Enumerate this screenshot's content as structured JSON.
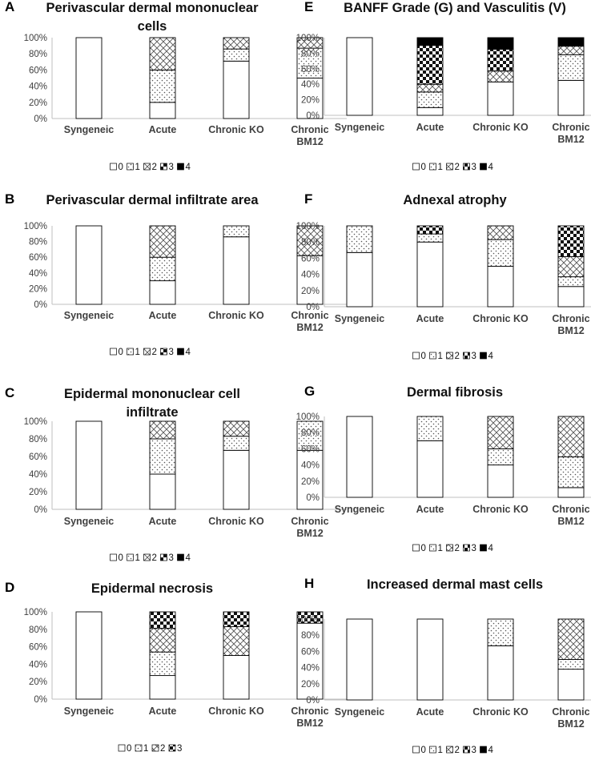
{
  "colors": {
    "bar_stroke": "#000000",
    "axis": "#bfbfbf",
    "text": "#404040",
    "background": "#ffffff"
  },
  "chart_data": [
    {
      "panel": "A",
      "type": "bar",
      "stacked": true,
      "percent": true,
      "title_lines": [
        "Perivascular dermal mononuclear",
        "cells"
      ],
      "categories": [
        "Syngeneic",
        "Acute",
        "Chronic KO",
        "Chronic BM12"
      ],
      "category_lines": [
        [
          "Syngeneic"
        ],
        [
          "Acute"
        ],
        [
          "Chronic KO"
        ],
        [
          "Chronic",
          "BM12"
        ]
      ],
      "yticks": [
        "0%",
        "20%",
        "40%",
        "60%",
        "80%",
        "100%"
      ],
      "ylim": [
        0,
        100
      ],
      "series": [
        {
          "name": "0",
          "values": [
            100,
            20,
            71,
            50
          ]
        },
        {
          "name": "1",
          "values": [
            0,
            40,
            15,
            37
          ]
        },
        {
          "name": "2",
          "values": [
            0,
            40,
            14,
            13
          ]
        },
        {
          "name": "3",
          "values": [
            0,
            0,
            0,
            0
          ]
        },
        {
          "name": "4",
          "values": [
            0,
            0,
            0,
            0
          ]
        }
      ],
      "legend": [
        "0",
        "1",
        "2",
        "3",
        "4"
      ]
    },
    {
      "panel": "B",
      "type": "bar",
      "stacked": true,
      "percent": true,
      "title_lines": [
        "Perivascular dermal infiltrate area"
      ],
      "categories": [
        "Syngeneic",
        "Acute",
        "Chronic KO",
        "Chronic BM12"
      ],
      "category_lines": [
        [
          "Syngeneic"
        ],
        [
          "Acute"
        ],
        [
          "Chronic KO"
        ],
        [
          "Chronic",
          "BM12"
        ]
      ],
      "yticks": [
        "0%",
        "20%",
        "40%",
        "60%",
        "80%",
        "100%"
      ],
      "ylim": [
        0,
        100
      ],
      "series": [
        {
          "name": "0",
          "values": [
            100,
            30,
            86,
            62
          ]
        },
        {
          "name": "1",
          "values": [
            0,
            30,
            14,
            0
          ]
        },
        {
          "name": "2",
          "values": [
            0,
            40,
            0,
            38
          ]
        },
        {
          "name": "3",
          "values": [
            0,
            0,
            0,
            0
          ]
        },
        {
          "name": "4",
          "values": [
            0,
            0,
            0,
            0
          ]
        }
      ],
      "legend": [
        "0",
        "1",
        "2",
        "3",
        "4"
      ]
    },
    {
      "panel": "C",
      "type": "bar",
      "stacked": true,
      "percent": true,
      "title_lines": [
        "Epidermal mononuclear cell",
        "infiltrate"
      ],
      "categories": [
        "Syngeneic",
        "Acute",
        "Chronic KO",
        "Chronic BM12"
      ],
      "category_lines": [
        [
          "Syngeneic"
        ],
        [
          "Acute"
        ],
        [
          "Chronic KO"
        ],
        [
          "Chronic",
          "BM12"
        ]
      ],
      "yticks": [
        "0%",
        "20%",
        "40%",
        "60%",
        "80%",
        "100%"
      ],
      "ylim": [
        0,
        100
      ],
      "series": [
        {
          "name": "0",
          "values": [
            100,
            40,
            67,
            67
          ]
        },
        {
          "name": "1",
          "values": [
            0,
            40,
            16,
            33
          ]
        },
        {
          "name": "2",
          "values": [
            0,
            20,
            17,
            0
          ]
        },
        {
          "name": "3",
          "values": [
            0,
            0,
            0,
            0
          ]
        },
        {
          "name": "4",
          "values": [
            0,
            0,
            0,
            0
          ]
        }
      ],
      "legend": [
        "0",
        "1",
        "2",
        "3",
        "4"
      ]
    },
    {
      "panel": "D",
      "type": "bar",
      "stacked": true,
      "percent": true,
      "title_lines": [
        "Epidermal necrosis"
      ],
      "categories": [
        "Syngeneic",
        "Acute",
        "Chronic KO",
        "Chronic BM12"
      ],
      "category_lines": [
        [
          "Syngeneic"
        ],
        [
          "Acute"
        ],
        [
          "Chronic KO"
        ],
        [
          "Chronic",
          "BM12"
        ]
      ],
      "yticks": [
        "0%",
        "20%",
        "40%",
        "60%",
        "80%",
        "100%"
      ],
      "ylim": [
        0,
        100
      ],
      "series": [
        {
          "name": "0",
          "values": [
            100,
            27,
            50,
            87
          ]
        },
        {
          "name": "1",
          "values": [
            0,
            27,
            0,
            0
          ]
        },
        {
          "name": "2",
          "values": [
            0,
            27,
            33,
            0
          ]
        },
        {
          "name": "3",
          "values": [
            0,
            19,
            17,
            13
          ]
        }
      ],
      "legend": [
        "0",
        "1",
        "2",
        "3"
      ]
    },
    {
      "panel": "E",
      "type": "bar",
      "stacked": true,
      "percent": true,
      "title_lines": [
        "BANFF Grade (G) and Vasculitis (V)"
      ],
      "categories": [
        "Syngeneic",
        "Acute",
        "Chronic KO",
        "Chronic BM12"
      ],
      "category_lines": [
        [
          "Syngeneic"
        ],
        [
          "Acute"
        ],
        [
          "Chronic KO"
        ],
        [
          "Chronic",
          "BM12"
        ]
      ],
      "yticks": [
        "0%",
        "20%",
        "40%",
        "60%",
        "80%",
        "100%"
      ],
      "ylim": [
        0,
        100
      ],
      "series": [
        {
          "name": "0",
          "values": [
            100,
            10,
            43,
            45
          ]
        },
        {
          "name": "1",
          "values": [
            0,
            20,
            0,
            33
          ]
        },
        {
          "name": "2",
          "values": [
            0,
            10,
            14,
            11
          ]
        },
        {
          "name": "3",
          "values": [
            0,
            50,
            28,
            0
          ]
        },
        {
          "name": "4",
          "values": [
            0,
            10,
            15,
            11
          ]
        }
      ],
      "legend": [
        "0",
        "1",
        "2",
        "3",
        "4"
      ]
    },
    {
      "panel": "F",
      "type": "bar",
      "stacked": true,
      "percent": true,
      "title_lines": [
        "Adnexal atrophy"
      ],
      "categories": [
        "Syngeneic",
        "Acute",
        "Chronic KO",
        "Chronic BM12"
      ],
      "category_lines": [
        [
          "Syngeneic"
        ],
        [
          "Acute"
        ],
        [
          "Chronic KO"
        ],
        [
          "Chronic",
          "BM12"
        ]
      ],
      "yticks": [
        "0%",
        "20%",
        "40%",
        "60%",
        "80%",
        "100%"
      ],
      "ylim": [
        0,
        100
      ],
      "series": [
        {
          "name": "0",
          "values": [
            67,
            80,
            50,
            25
          ]
        },
        {
          "name": "1",
          "values": [
            33,
            10,
            33,
            12
          ]
        },
        {
          "name": "2",
          "values": [
            0,
            0,
            17,
            25
          ]
        },
        {
          "name": "3",
          "values": [
            0,
            10,
            0,
            38
          ]
        },
        {
          "name": "4",
          "values": [
            0,
            0,
            0,
            0
          ]
        }
      ],
      "legend": [
        "0",
        "1",
        "2",
        "3",
        "4"
      ]
    },
    {
      "panel": "G",
      "type": "bar",
      "stacked": true,
      "percent": true,
      "title_lines": [
        "Dermal fibrosis"
      ],
      "categories": [
        "Syngeneic",
        "Acute",
        "Chronic KO",
        "Chronic BM12"
      ],
      "category_lines": [
        [
          "Syngeneic"
        ],
        [
          "Acute"
        ],
        [
          "Chronic KO"
        ],
        [
          "Chronic",
          "BM12"
        ]
      ],
      "yticks": [
        "0%",
        "20%",
        "40%",
        "60%",
        "80%",
        "100%"
      ],
      "ylim": [
        0,
        100
      ],
      "series": [
        {
          "name": "0",
          "values": [
            100,
            70,
            40,
            12
          ]
        },
        {
          "name": "1",
          "values": [
            0,
            30,
            20,
            38
          ]
        },
        {
          "name": "2",
          "values": [
            0,
            0,
            40,
            50
          ]
        },
        {
          "name": "3",
          "values": [
            0,
            0,
            0,
            0
          ]
        },
        {
          "name": "4",
          "values": [
            0,
            0,
            0,
            0
          ]
        }
      ],
      "legend": [
        "0",
        "1",
        "2",
        "3",
        "4"
      ]
    },
    {
      "panel": "H",
      "type": "bar",
      "stacked": true,
      "percent": true,
      "title_lines": [
        "Increased dermal mast cells"
      ],
      "categories": [
        "Syngeneic",
        "Acute",
        "Chronic KO",
        "Chronic BM12"
      ],
      "category_lines": [
        [
          "Syngeneic"
        ],
        [
          "Acute"
        ],
        [
          "Chronic KO"
        ],
        [
          "Chronic",
          "BM12"
        ]
      ],
      "yticks": [
        "0%",
        "20%",
        "40%",
        "60%",
        "80%",
        "100%"
      ],
      "ylim": [
        0,
        100
      ],
      "series": [
        {
          "name": "0",
          "values": [
            100,
            100,
            67,
            38
          ]
        },
        {
          "name": "1",
          "values": [
            0,
            0,
            33,
            12
          ]
        },
        {
          "name": "2",
          "values": [
            0,
            0,
            0,
            50
          ]
        },
        {
          "name": "3",
          "values": [
            0,
            0,
            0,
            0
          ]
        },
        {
          "name": "4",
          "values": [
            0,
            0,
            0,
            0
          ]
        }
      ],
      "legend": [
        "0",
        "1",
        "2",
        "3",
        "4"
      ]
    }
  ]
}
